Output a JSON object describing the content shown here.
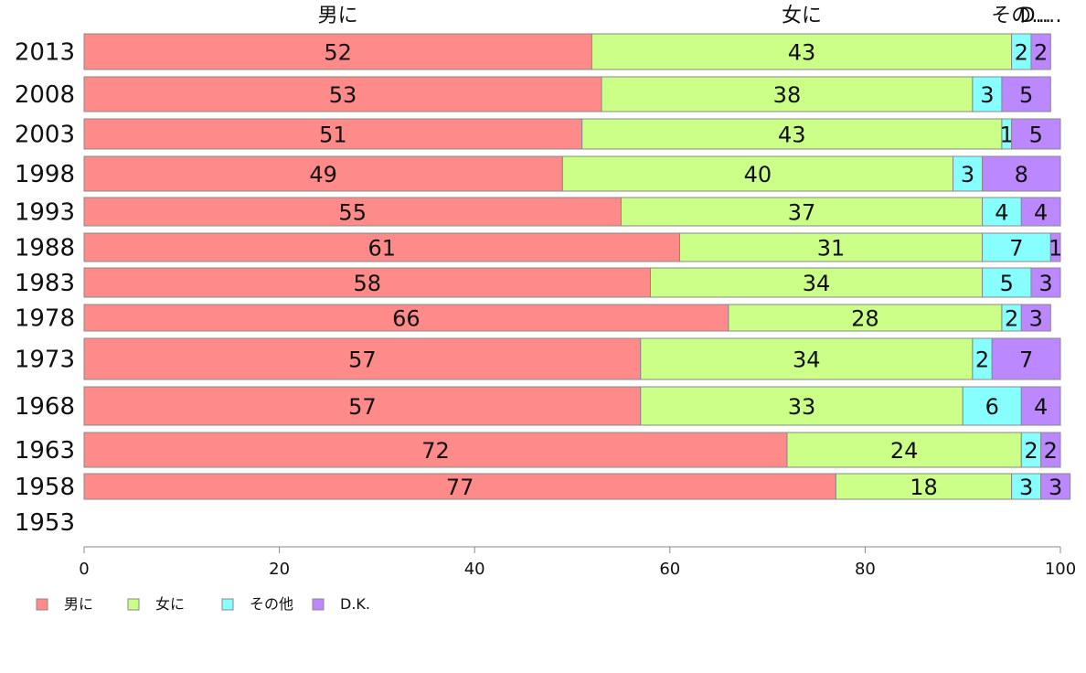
{
  "chart_data": {
    "type": "bar",
    "orientation": "horizontal",
    "stacked": true,
    "categories": [
      "2013",
      "2008",
      "2003",
      "1998",
      "1993",
      "1988",
      "1983",
      "1978",
      "1973",
      "1968",
      "1963",
      "1958",
      "1953"
    ],
    "series": [
      {
        "name": "男に",
        "color": "#ff8a8a",
        "values": [
          52,
          53,
          51,
          49,
          55,
          61,
          58,
          66,
          57,
          57,
          72,
          77,
          null
        ]
      },
      {
        "name": "女に",
        "color": "#ccff88",
        "values": [
          43,
          38,
          43,
          40,
          37,
          31,
          34,
          28,
          34,
          33,
          24,
          18,
          null
        ]
      },
      {
        "name": "その他",
        "color": "#88ffff",
        "values": [
          2,
          3,
          1,
          3,
          4,
          7,
          5,
          2,
          2,
          6,
          2,
          3,
          null
        ]
      },
      {
        "name": "D.K.",
        "color": "#bb88ff",
        "values": [
          2,
          5,
          5,
          8,
          4,
          1,
          3,
          3,
          7,
          4,
          2,
          3,
          null
        ]
      }
    ],
    "top_labels": [
      "男に",
      "女に",
      "その他",
      "D.K."
    ],
    "xlim": [
      0,
      100
    ],
    "xticks": [
      "0",
      "20",
      "40",
      "60",
      "80",
      "100"
    ],
    "title": "",
    "xlabel": "",
    "ylabel": "",
    "grid": false,
    "legend_position": "bottom-left"
  }
}
